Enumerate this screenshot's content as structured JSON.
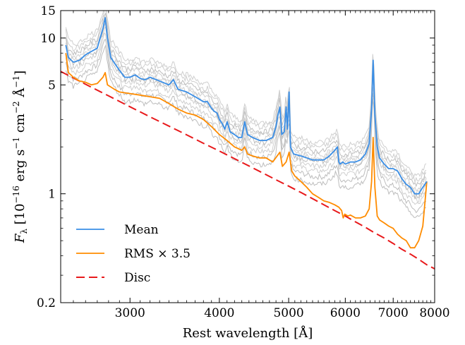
{
  "chart_data": {
    "type": "line",
    "xlabel": "Rest wavelength [Å]",
    "ylabel": "F_λ [10^−16 erg s^−1 cm^−2 Å^−1]",
    "ylabel_parts": {
      "sym": "F",
      "sub": "λ",
      "open": " [10",
      "exp_unit": "−16",
      "erg": " erg s",
      "exp_s": "−1",
      "cm": " cm",
      "exp_cm": "−2",
      "ang": " Å",
      "exp_ang": "−1",
      "close": "]"
    },
    "x_scale": "log",
    "y_scale": "log",
    "xlim": [
      2400,
      8000
    ],
    "ylim": [
      0.2,
      15
    ],
    "x_ticks": [
      {
        "value": 3000,
        "label": "3000"
      },
      {
        "value": 4000,
        "label": "4000"
      },
      {
        "value": 5000,
        "label": "5000"
      },
      {
        "value": 6000,
        "label": "6000"
      },
      {
        "value": 7000,
        "label": "7000"
      },
      {
        "value": 8000,
        "label": "8000"
      }
    ],
    "y_ticks": [
      {
        "value": 0.2,
        "label": "0.2"
      },
      {
        "value": 1,
        "label": "1"
      },
      {
        "value": 5,
        "label": "5"
      },
      {
        "value": 10,
        "label": "10"
      },
      {
        "value": 15,
        "label": "15"
      }
    ],
    "grid": false,
    "legend_position": "lower-left",
    "series": [
      {
        "name": "Mean",
        "color": "#3a8ee6",
        "style": "solid",
        "x": [
          2440,
          2460,
          2500,
          2550,
          2600,
          2650,
          2700,
          2750,
          2770,
          2790,
          2820,
          2860,
          2900,
          2950,
          3000,
          3050,
          3100,
          3150,
          3200,
          3300,
          3400,
          3450,
          3500,
          3600,
          3700,
          3800,
          3850,
          3890,
          3930,
          3970,
          4000,
          4040,
          4070,
          4102,
          4140,
          4200,
          4250,
          4300,
          4340,
          4380,
          4450,
          4550,
          4650,
          4750,
          4800,
          4830,
          4861,
          4890,
          4930,
          4959,
          4980,
          5007,
          5030,
          5080,
          5200,
          5300,
          5400,
          5500,
          5600,
          5700,
          5800,
          5850,
          5876,
          5900,
          5950,
          6000,
          6100,
          6200,
          6300,
          6400,
          6480,
          6530,
          6563,
          6600,
          6650,
          6700,
          6800,
          6900,
          7000,
          7100,
          7200,
          7300,
          7400,
          7500,
          7600,
          7700,
          7800
        ],
        "y": [
          9.0,
          7.5,
          7.0,
          7.2,
          7.8,
          8.2,
          8.6,
          11.5,
          13.5,
          10.0,
          7.5,
          6.8,
          6.2,
          5.6,
          5.6,
          5.8,
          5.5,
          5.4,
          5.6,
          5.3,
          5.0,
          5.4,
          4.7,
          4.5,
          4.2,
          3.9,
          3.9,
          3.6,
          3.4,
          3.3,
          3.0,
          2.8,
          2.6,
          2.9,
          2.5,
          2.4,
          2.3,
          2.3,
          2.9,
          2.4,
          2.3,
          2.2,
          2.2,
          2.3,
          2.7,
          3.2,
          3.6,
          2.4,
          2.5,
          3.6,
          2.6,
          4.5,
          2.0,
          1.8,
          1.75,
          1.7,
          1.65,
          1.65,
          1.65,
          1.75,
          1.9,
          2.0,
          1.6,
          1.55,
          1.6,
          1.55,
          1.6,
          1.6,
          1.65,
          1.8,
          2.1,
          3.5,
          7.2,
          3.2,
          2.0,
          1.7,
          1.55,
          1.45,
          1.45,
          1.4,
          1.25,
          1.15,
          1.1,
          1.0,
          1.0,
          1.1,
          1.2
        ]
      },
      {
        "name": "RMS × 3.5",
        "color": "#ff8c00",
        "style": "solid",
        "x": [
          2440,
          2460,
          2500,
          2550,
          2600,
          2650,
          2700,
          2750,
          2770,
          2790,
          2850,
          2900,
          3000,
          3100,
          3200,
          3300,
          3400,
          3500,
          3600,
          3700,
          3800,
          3900,
          4000,
          4100,
          4200,
          4300,
          4340,
          4380,
          4450,
          4550,
          4650,
          4750,
          4861,
          4900,
          4959,
          5007,
          5050,
          5100,
          5200,
          5300,
          5400,
          5500,
          5600,
          5700,
          5800,
          5876,
          5930,
          5960,
          5990,
          6050,
          6100,
          6200,
          6300,
          6400,
          6480,
          6530,
          6563,
          6600,
          6650,
          6700,
          6800,
          6900,
          7000,
          7100,
          7200,
          7300,
          7400,
          7500,
          7600,
          7700,
          7800
        ],
        "y": [
          8.0,
          6.0,
          5.6,
          5.3,
          5.2,
          5.0,
          5.1,
          5.6,
          6.0,
          5.0,
          4.7,
          4.5,
          4.4,
          4.3,
          4.2,
          4.1,
          3.8,
          3.5,
          3.3,
          3.2,
          3.0,
          2.7,
          2.4,
          2.2,
          2.0,
          1.9,
          2.0,
          1.8,
          1.75,
          1.7,
          1.7,
          1.6,
          1.85,
          1.5,
          1.6,
          1.85,
          1.4,
          1.3,
          1.2,
          1.1,
          1.0,
          0.95,
          0.9,
          0.88,
          0.85,
          0.82,
          0.78,
          0.7,
          0.74,
          0.72,
          0.73,
          0.7,
          0.7,
          0.72,
          0.8,
          1.2,
          2.3,
          1.1,
          0.72,
          0.68,
          0.65,
          0.62,
          0.6,
          0.55,
          0.52,
          0.5,
          0.45,
          0.45,
          0.5,
          0.62,
          1.2
        ]
      },
      {
        "name": "Disc",
        "color": "#e8191b",
        "style": "dashed",
        "x": [
          2400,
          2600,
          2800,
          3000,
          3200,
          3400,
          3600,
          3800,
          4000,
          4200,
          4400,
          4600,
          4800,
          5000,
          5200,
          5400,
          5600,
          5800,
          6000,
          6200,
          6400,
          6600,
          6800,
          7000,
          7200,
          7400,
          7600,
          7800,
          8000
        ],
        "y": [
          6.1,
          5.05,
          4.25,
          3.62,
          3.12,
          2.72,
          2.39,
          2.11,
          1.88,
          1.68,
          1.51,
          1.36,
          1.23,
          1.12,
          1.02,
          0.93,
          0.85,
          0.78,
          0.72,
          0.66,
          0.61,
          0.56,
          0.52,
          0.48,
          0.44,
          0.41,
          0.38,
          0.35,
          0.33
        ]
      }
    ]
  }
}
